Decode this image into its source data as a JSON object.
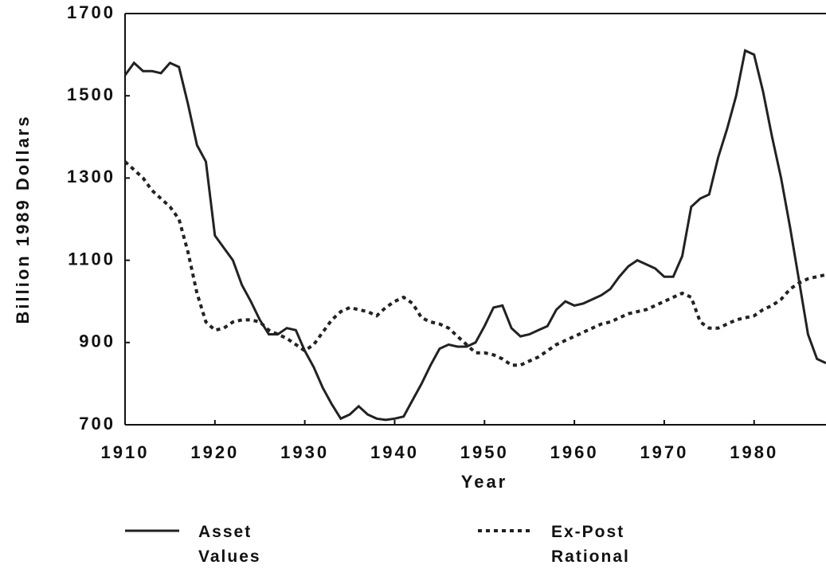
{
  "chart_data": {
    "type": "line",
    "x_label": "Year",
    "y_label": "Billion 1989 Dollars",
    "x": [
      1910,
      1911,
      1912,
      1913,
      1914,
      1915,
      1916,
      1917,
      1918,
      1919,
      1920,
      1921,
      1922,
      1923,
      1924,
      1925,
      1926,
      1927,
      1928,
      1929,
      1930,
      1931,
      1932,
      1933,
      1934,
      1935,
      1936,
      1937,
      1938,
      1939,
      1940,
      1941,
      1942,
      1943,
      1944,
      1945,
      1946,
      1947,
      1948,
      1949,
      1950,
      1951,
      1952,
      1953,
      1954,
      1955,
      1956,
      1957,
      1958,
      1959,
      1960,
      1961,
      1962,
      1963,
      1964,
      1965,
      1966,
      1967,
      1968,
      1969,
      1970,
      1971,
      1972,
      1973,
      1974,
      1975,
      1976,
      1977,
      1978,
      1979,
      1980,
      1981,
      1982,
      1983,
      1984,
      1985,
      1986,
      1987,
      1988
    ],
    "series": [
      {
        "name": "Asset Values",
        "color": "#222222",
        "dash": false,
        "values": [
          1550,
          1580,
          1560,
          1560,
          1555,
          1580,
          1570,
          1480,
          1380,
          1340,
          1160,
          1130,
          1100,
          1040,
          1000,
          955,
          920,
          920,
          935,
          930,
          880,
          840,
          790,
          750,
          715,
          725,
          745,
          725,
          715,
          712,
          715,
          720,
          760,
          800,
          845,
          885,
          895,
          890,
          890,
          900,
          940,
          985,
          990,
          935,
          915,
          920,
          930,
          940,
          980,
          1000,
          990,
          995,
          1005,
          1015,
          1030,
          1060,
          1085,
          1100,
          1090,
          1080,
          1060,
          1060,
          1110,
          1230,
          1250,
          1260,
          1350,
          1420,
          1500,
          1610,
          1600,
          1510,
          1400,
          1300,
          1180,
          1050,
          920,
          860,
          850
        ]
      },
      {
        "name": "Ex-Post Rational",
        "color": "#222222",
        "dash": true,
        "values": [
          1340,
          1320,
          1300,
          1270,
          1250,
          1230,
          1200,
          1120,
          1020,
          950,
          930,
          935,
          950,
          955,
          955,
          950,
          930,
          920,
          910,
          895,
          880,
          895,
          925,
          955,
          975,
          985,
          980,
          975,
          965,
          985,
          1000,
          1010,
          995,
          960,
          950,
          945,
          935,
          915,
          895,
          875,
          875,
          870,
          860,
          845,
          845,
          855,
          865,
          880,
          895,
          905,
          915,
          925,
          935,
          945,
          950,
          960,
          970,
          975,
          980,
          990,
          1000,
          1010,
          1020,
          1010,
          950,
          935,
          935,
          945,
          955,
          960,
          965,
          980,
          990,
          1005,
          1030,
          1045,
          1055,
          1060,
          1065
        ]
      }
    ],
    "xlim": [
      1910,
      1988
    ],
    "ylim": [
      700,
      1700
    ],
    "xticks": [
      1910,
      1920,
      1930,
      1940,
      1950,
      1960,
      1970,
      1980
    ],
    "yticks": [
      700,
      900,
      1100,
      1300,
      1500,
      1700
    ]
  }
}
